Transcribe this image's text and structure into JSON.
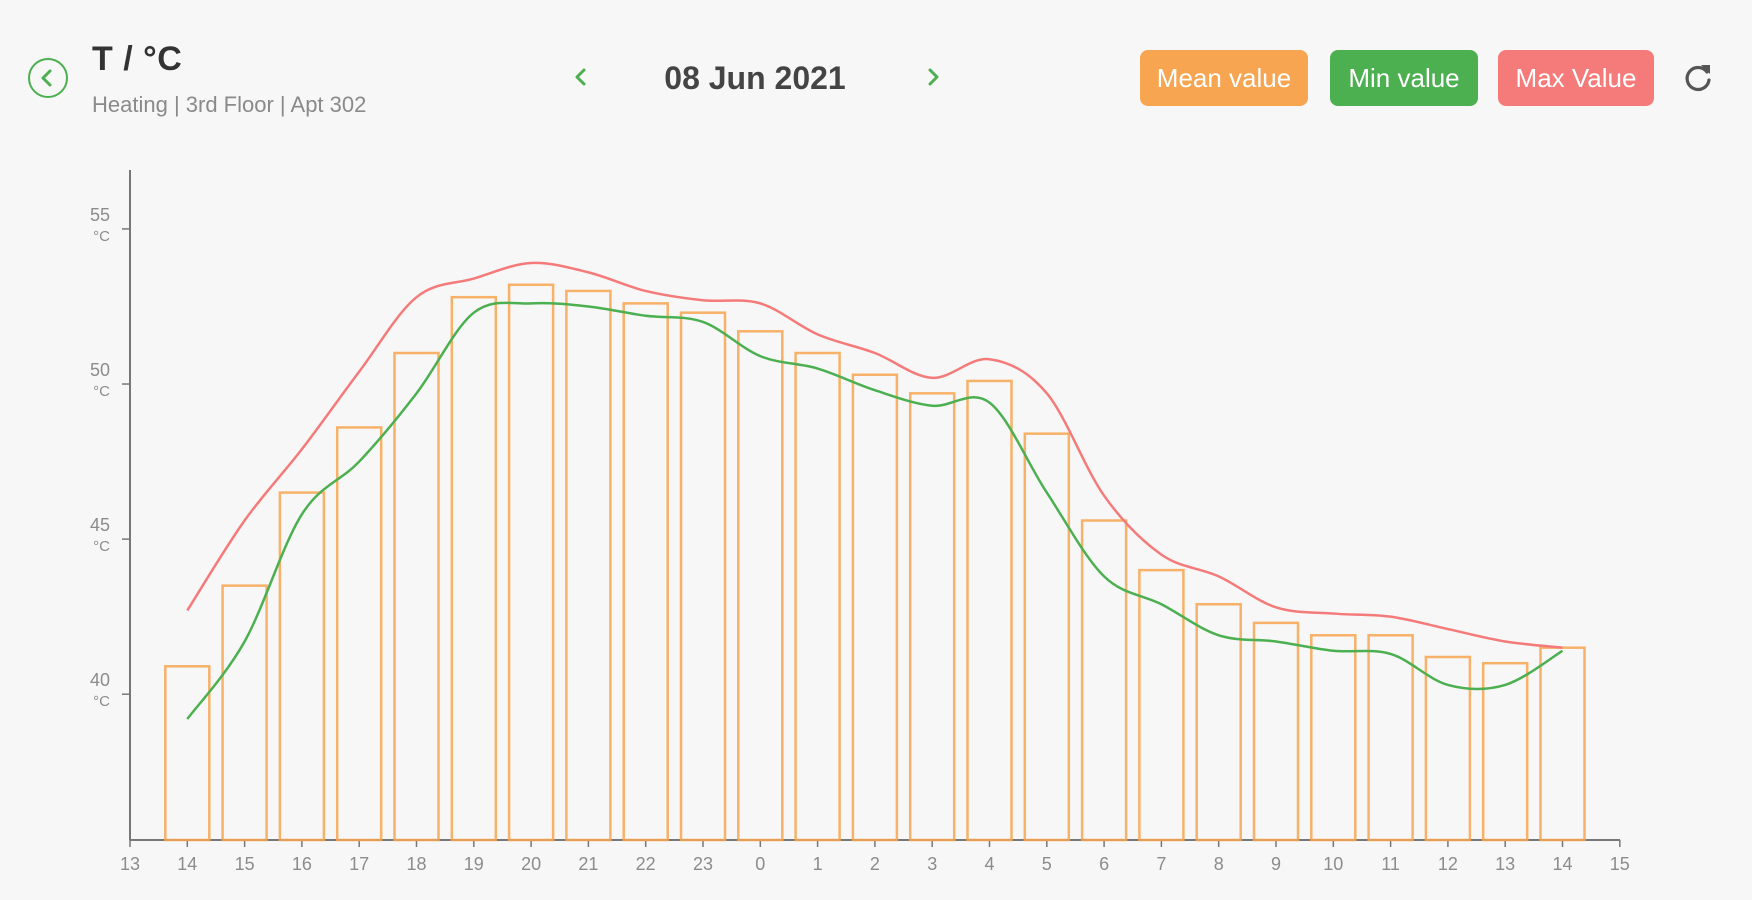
{
  "header": {
    "title": "T / °C",
    "subtitle": "Heating | 3rd Floor | Apt 302",
    "date": "08 Jun 2021",
    "back_icon": "chevron-left-icon",
    "prev_icon": "chevron-left-icon",
    "next_icon": "chevron-right-icon",
    "refresh_icon": "refresh-icon"
  },
  "legend": {
    "mean": {
      "label": "Mean value",
      "color": "#f7a550"
    },
    "min": {
      "label": "Min value",
      "color": "#4caf50"
    },
    "max": {
      "label": "Max Value",
      "color": "#f57a7a"
    }
  },
  "chart_data": {
    "type": "bar",
    "categories": [
      "14",
      "15",
      "16",
      "17",
      "18",
      "19",
      "20",
      "21",
      "22",
      "23",
      "0",
      "1",
      "2",
      "3",
      "4",
      "5",
      "6",
      "7",
      "8",
      "9",
      "10",
      "11",
      "12",
      "13",
      "14"
    ],
    "x_ticks": [
      "13",
      "14",
      "15",
      "16",
      "17",
      "18",
      "19",
      "20",
      "21",
      "22",
      "23",
      "0",
      "1",
      "2",
      "3",
      "4",
      "5",
      "6",
      "7",
      "8",
      "9",
      "10",
      "11",
      "12",
      "13",
      "14",
      "15"
    ],
    "y_ticks": [
      {
        "value": 40,
        "label": "40",
        "unit": "°C"
      },
      {
        "value": 45,
        "label": "45",
        "unit": "°C"
      },
      {
        "value": 50,
        "label": "50",
        "unit": "°C"
      },
      {
        "value": 55,
        "label": "55",
        "unit": "°C"
      }
    ],
    "ylim": [
      35.3,
      56.9
    ],
    "grid": false,
    "series": [
      {
        "name": "Mean value",
        "type": "bar",
        "color": "#f7a550",
        "values": [
          40.9,
          43.5,
          46.5,
          48.6,
          51.0,
          52.8,
          53.2,
          53.0,
          52.6,
          52.3,
          51.7,
          51.0,
          50.3,
          49.7,
          50.1,
          48.4,
          45.6,
          44.0,
          42.9,
          42.3,
          41.9,
          41.9,
          41.2,
          41.0,
          41.5
        ]
      },
      {
        "name": "Min value",
        "type": "line",
        "color": "#4caf50",
        "values": [
          39.2,
          41.7,
          45.8,
          47.5,
          49.7,
          52.3,
          52.6,
          52.5,
          52.2,
          52.0,
          50.9,
          50.5,
          49.8,
          49.3,
          49.4,
          46.5,
          43.8,
          42.9,
          41.9,
          41.7,
          41.4,
          41.3,
          40.3,
          40.3,
          41.4
        ]
      },
      {
        "name": "Max Value",
        "type": "line",
        "color": "#f57a7a",
        "values": [
          42.7,
          45.6,
          47.9,
          50.4,
          52.8,
          53.4,
          53.9,
          53.6,
          53.0,
          52.7,
          52.6,
          51.6,
          51.0,
          50.2,
          50.8,
          49.7,
          46.4,
          44.5,
          43.8,
          42.8,
          42.6,
          42.5,
          42.1,
          41.7,
          41.5
        ]
      }
    ]
  }
}
